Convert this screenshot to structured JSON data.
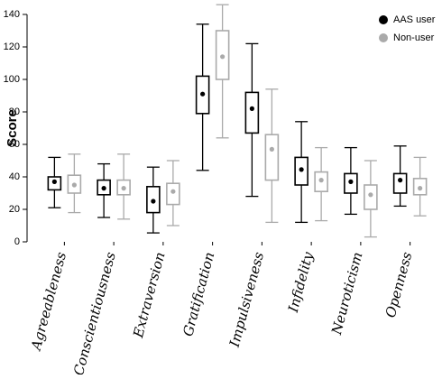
{
  "chart_data": {
    "type": "box",
    "y_label": "Score",
    "categories": [
      "Agreeableness",
      "Conscientiousness",
      "Extraversion",
      "Gratification",
      "Impulsiveness",
      "Infidelity",
      "Neuroticism",
      "Openness"
    ],
    "ylim": [
      0,
      147
    ],
    "yticks": [
      0,
      20,
      40,
      60,
      80,
      100,
      120,
      140
    ],
    "legend": "top-right",
    "series": [
      {
        "name": "AAS user",
        "color": "#000000",
        "min": [
          21,
          15,
          5.5,
          44,
          28,
          12,
          17,
          22
        ],
        "q1": [
          32,
          29,
          18,
          79,
          67,
          35,
          30,
          30
        ],
        "center": [
          37,
          33,
          25,
          91,
          82,
          44.5,
          37,
          38
        ],
        "q3": [
          40,
          38,
          34,
          102,
          92,
          52,
          42,
          42
        ],
        "max": [
          52,
          48,
          46,
          134,
          122,
          74,
          58,
          59
        ]
      },
      {
        "name": "Non-user",
        "color": "#aaaaaa",
        "min": [
          18,
          14,
          10,
          64,
          12,
          13,
          3,
          16
        ],
        "q1": [
          30,
          29,
          23,
          100,
          38,
          31,
          20,
          29
        ],
        "center": [
          35,
          33,
          31,
          114,
          57,
          38,
          29,
          33
        ],
        "q3": [
          41,
          38,
          36,
          130,
          66,
          43,
          35,
          39
        ],
        "max": [
          54,
          54,
          50,
          146,
          94,
          58,
          50,
          52
        ]
      }
    ]
  }
}
